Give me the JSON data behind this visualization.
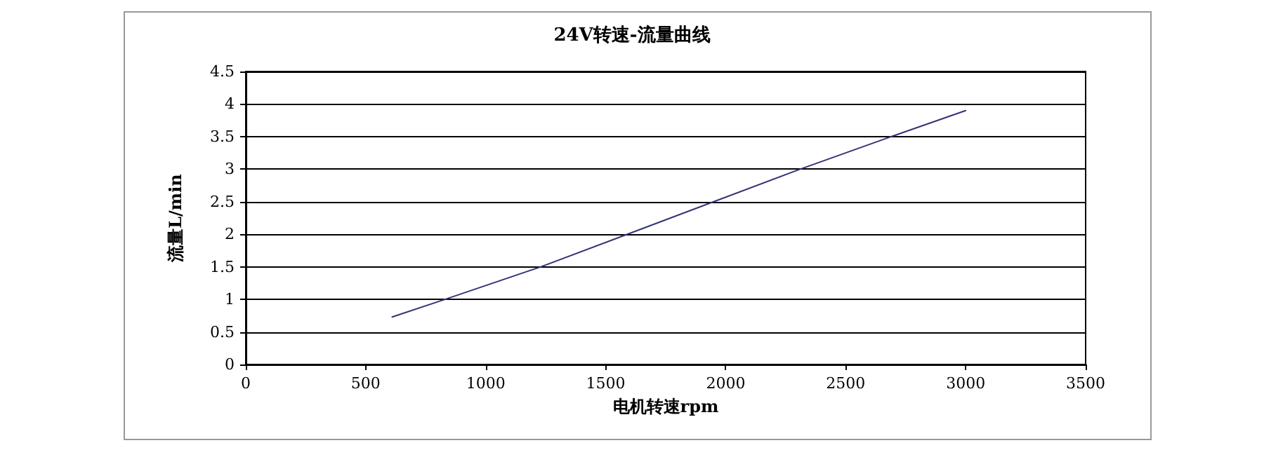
{
  "chart_data": {
    "type": "line",
    "title": "24V转速-流量曲线",
    "xlabel": "电机转速rpm",
    "ylabel": "流量L/min",
    "series": [
      {
        "color": "#333377",
        "x": [
          610,
          830,
          1230,
          1590,
          1950,
          2310,
          2690,
          3000
        ],
        "values": [
          0.73,
          1.0,
          1.5,
          2.0,
          2.5,
          3.0,
          3.5,
          3.9
        ]
      }
    ],
    "xlim": [
      0,
      3500
    ],
    "xticks": [
      0,
      500,
      1000,
      1500,
      2000,
      2500,
      3000,
      3500
    ],
    "ylim": [
      0,
      4.5
    ],
    "yticks": [
      0,
      0.5,
      1,
      1.5,
      2,
      2.5,
      3,
      3.5,
      4,
      4.5
    ],
    "grid": "y",
    "marker": "none",
    "line_style": "solid"
  }
}
